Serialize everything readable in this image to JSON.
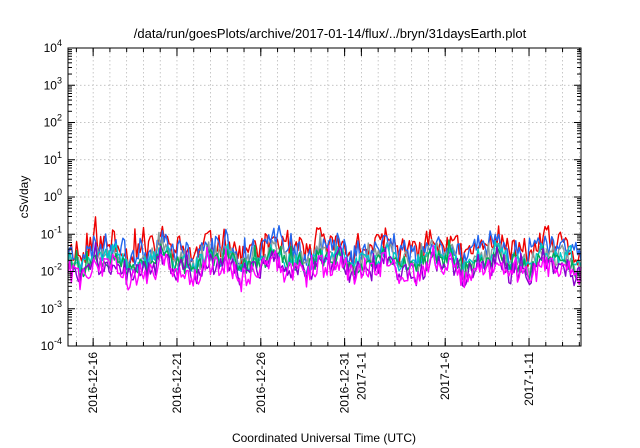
{
  "chart_data": {
    "type": "line",
    "title": "/data/run/goesPlots/archive/2017-01-14/flux/../bryn/31daysEarth.plot",
    "xlabel": "Coordinated Universal Time (UTC)",
    "ylabel": "cSv/day",
    "yscale": "log",
    "ylim": [
      0.0001,
      10000
    ],
    "xlim_days": [
      -1.5,
      29.1
    ],
    "x_unit": "days since 2016-12-16 00:00 UTC",
    "y_ticks": [
      {
        "base": "10",
        "exp": "-4",
        "value": 0.0001
      },
      {
        "base": "10",
        "exp": "-3",
        "value": 0.001
      },
      {
        "base": "10",
        "exp": "-2",
        "value": 0.01
      },
      {
        "base": "10",
        "exp": "-1",
        "value": 0.1
      },
      {
        "base": "10",
        "exp": "0",
        "value": 1
      },
      {
        "base": "10",
        "exp": "1",
        "value": 10
      },
      {
        "base": "10",
        "exp": "2",
        "value": 100
      },
      {
        "base": "10",
        "exp": "3",
        "value": 1000
      },
      {
        "base": "10",
        "exp": "4",
        "value": 10000
      }
    ],
    "x_ticks": [
      {
        "label": "2016-12-16",
        "day": 0
      },
      {
        "label": "2016-12-21",
        "day": 5
      },
      {
        "label": "2016-12-26",
        "day": 10
      },
      {
        "label": "2016-12-31",
        "day": 15
      },
      {
        "label": "2017-1-1",
        "day": 16
      },
      {
        "label": "2017-1-6",
        "day": 21
      },
      {
        "label": "2017-1-11",
        "day": 26
      }
    ],
    "grid": true,
    "series": [
      {
        "name": "red",
        "color": "#ee0000",
        "base": 0.045,
        "amp": 0.33,
        "seed": 11
      },
      {
        "name": "blue",
        "color": "#2266ee",
        "base": 0.038,
        "amp": 0.33,
        "seed": 23
      },
      {
        "name": "gray",
        "color": "#8a9a9a",
        "base": 0.024,
        "amp": 0.25,
        "seed": 37
      },
      {
        "name": "cyan",
        "color": "#00c8c8",
        "base": 0.021,
        "amp": 0.23,
        "seed": 41
      },
      {
        "name": "green",
        "color": "#00aa55",
        "base": 0.018,
        "amp": 0.22,
        "seed": 53
      },
      {
        "name": "purple",
        "color": "#8800cc",
        "base": 0.0125,
        "amp": 0.27,
        "seed": 67
      },
      {
        "name": "magenta",
        "color": "#ff00ff",
        "base": 0.011,
        "amp": 0.3,
        "seed": 79
      }
    ],
    "n_points": 300
  }
}
